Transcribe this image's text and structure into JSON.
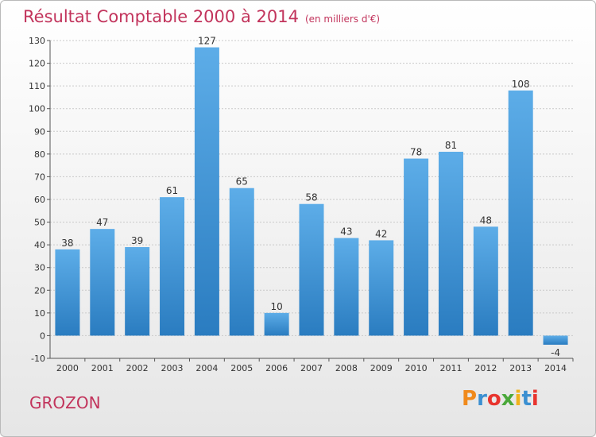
{
  "header": {
    "title": "Résultat Comptable 2000 à 2014",
    "subtitle": "(en milliers d'€)"
  },
  "footer": {
    "place": "GROZON",
    "brand": "Proxiti"
  },
  "colors": {
    "title": "#c2345c",
    "bar_top": "#5dade8",
    "bar_bottom": "#2a7cc0"
  },
  "chart_data": {
    "type": "bar",
    "title": "Résultat Comptable 2000 à 2014",
    "xlabel": "",
    "ylabel": "",
    "categories": [
      "2000",
      "2001",
      "2002",
      "2003",
      "2004",
      "2005",
      "2006",
      "2007",
      "2008",
      "2009",
      "2010",
      "2011",
      "2012",
      "2013",
      "2014"
    ],
    "values": [
      38,
      47,
      39,
      61,
      127,
      65,
      10,
      58,
      43,
      42,
      78,
      81,
      48,
      108,
      -4
    ],
    "ylim": [
      -10,
      130
    ],
    "yticks": [
      -10,
      0,
      10,
      20,
      30,
      40,
      50,
      60,
      70,
      80,
      90,
      100,
      110,
      120,
      130
    ],
    "grid": true
  }
}
